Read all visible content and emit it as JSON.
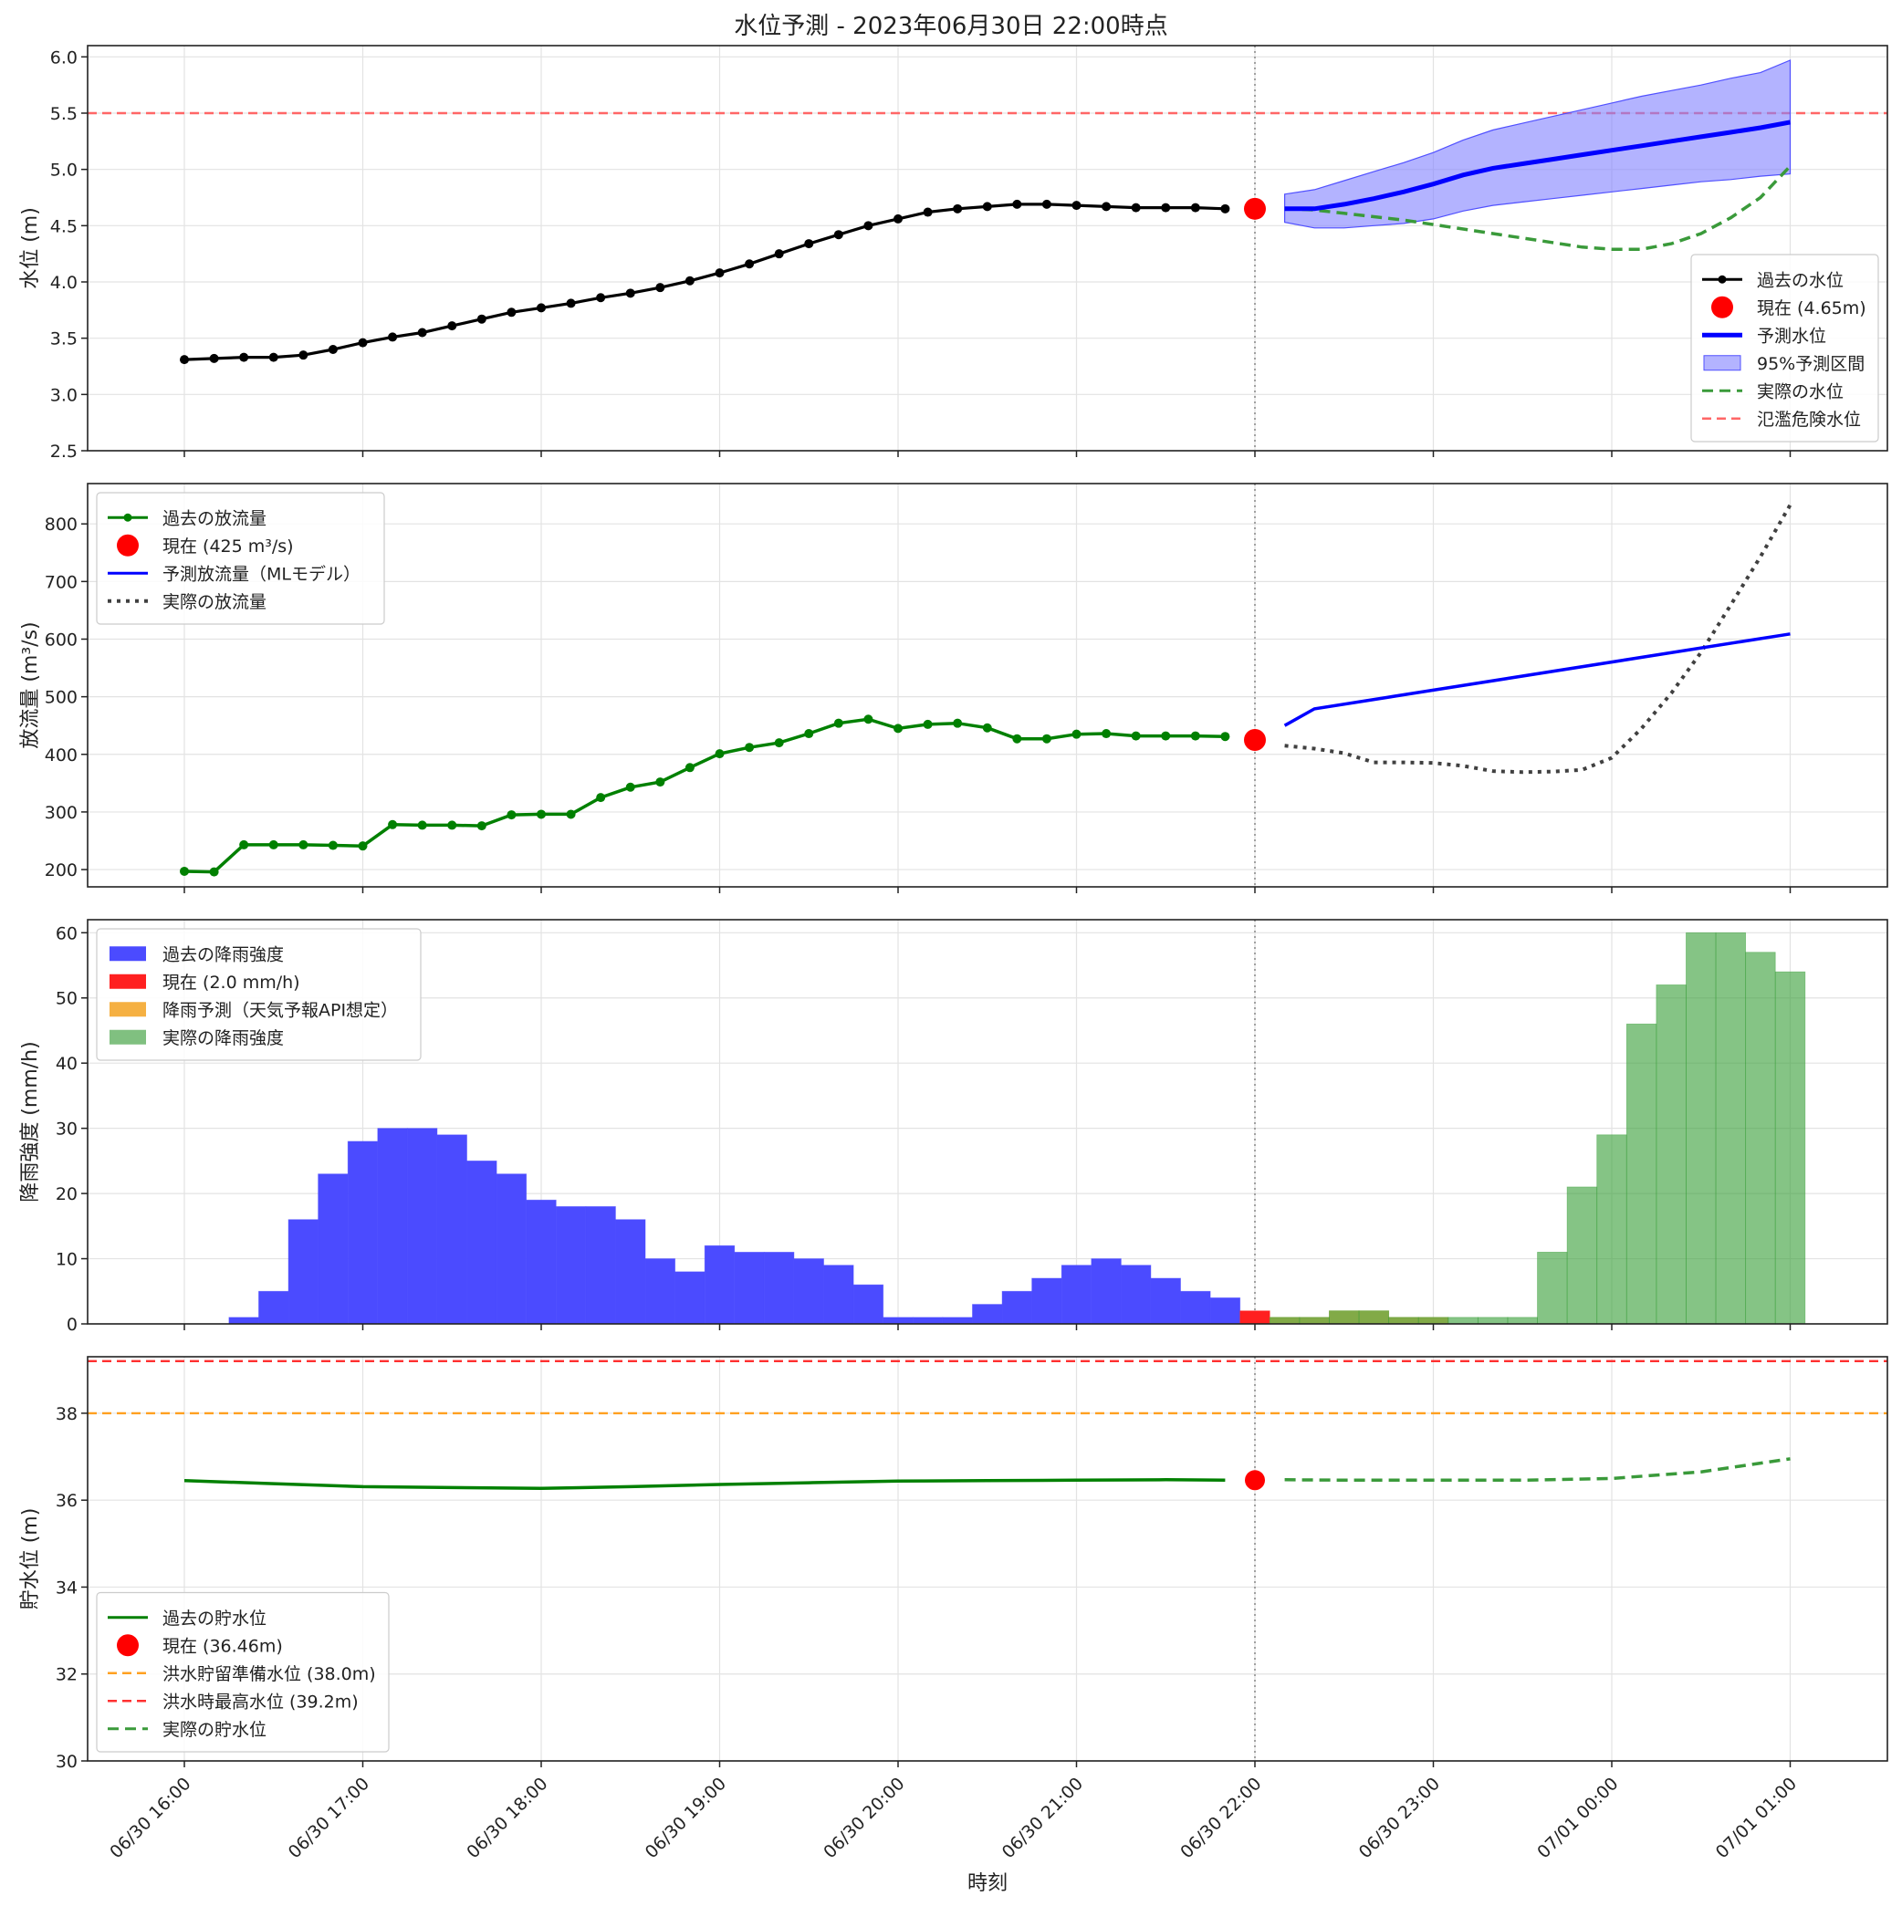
{
  "figure": {
    "title": "水位予測 - 2023年06月30日 22:00時点",
    "xlabel": "時刻",
    "x_tick_labels": [
      "06/30 16:00",
      "06/30 17:00",
      "06/30 18:00",
      "06/30 19:00",
      "06/30 20:00",
      "06/30 21:00",
      "06/30 22:00",
      "06/30 23:00",
      "07/01 00:00",
      "07/01 01:00"
    ],
    "current_time": "06/30 22:00"
  },
  "colors": {
    "past_level": "#000000",
    "current": "#ff0000",
    "forecast": "#0000ff",
    "interval": "#8080ff",
    "actual": "#3a9a3a",
    "flood_line": "#ff6666",
    "discharge_past": "#008000",
    "discharge_actual": "#404040",
    "rain_past": "#4b4bff",
    "rain_current": "#ff2020",
    "rain_forecast": "#f5b042",
    "rain_actual": "#80c080",
    "storage_past": "#008000",
    "prep_line": "#ffa020",
    "max_line": "#ff3030"
  },
  "chart_data": [
    {
      "type": "line",
      "ylabel": "水位 (m)",
      "ylim": [
        2.5,
        6.1
      ],
      "yticks": [
        "2.5",
        "3.0",
        "3.5",
        "4.0",
        "4.5",
        "5.0",
        "5.5",
        "6.0"
      ],
      "grid": true,
      "legend_position": "lower-right",
      "hline": {
        "name": "氾濫危険水位",
        "value": 5.5
      },
      "series": [
        {
          "name": "過去の水位",
          "x_hours": [
            0,
            0.1667,
            0.3333,
            0.5,
            0.6667,
            0.8333,
            1,
            1.1667,
            1.3333,
            1.5,
            1.6667,
            1.8333,
            2,
            2.1667,
            2.3333,
            2.5,
            2.6667,
            2.8333,
            3,
            3.1667,
            3.3333,
            3.5,
            3.6667,
            3.8333,
            4,
            4.1667,
            4.3333,
            4.5,
            4.6667,
            4.8333,
            5,
            5.1667,
            5.3333,
            5.5,
            5.6667,
            5.8333
          ],
          "values": [
            3.31,
            3.32,
            3.33,
            3.33,
            3.35,
            3.4,
            3.46,
            3.51,
            3.55,
            3.61,
            3.67,
            3.73,
            3.77,
            3.81,
            3.86,
            3.9,
            3.95,
            4.01,
            4.08,
            4.16,
            4.25,
            4.34,
            4.42,
            4.5,
            4.56,
            4.62,
            4.65,
            4.67,
            4.69,
            4.69,
            4.68,
            4.67,
            4.66,
            4.66,
            4.66,
            4.65
          ]
        },
        {
          "name": "現在 (4.65m)",
          "x_hours": [
            6
          ],
          "values": [
            4.65
          ]
        },
        {
          "name": "予測水位",
          "x_hours": [
            6.1667,
            6.3333,
            6.5,
            6.6667,
            6.8333,
            7,
            7.1667,
            7.3333,
            7.5,
            7.6667,
            7.8333,
            8,
            8.1667,
            8.3333,
            8.5,
            8.6667,
            8.8333,
            9
          ],
          "values": [
            4.65,
            4.65,
            4.69,
            4.74,
            4.8,
            4.87,
            4.95,
            5.01,
            5.05,
            5.09,
            5.13,
            5.17,
            5.21,
            5.25,
            5.29,
            5.33,
            5.37,
            5.42
          ]
        },
        {
          "name": "95%予測区間",
          "x_hours": [
            6.1667,
            6.3333,
            6.5,
            6.6667,
            6.8333,
            7,
            7.1667,
            7.3333,
            7.5,
            7.6667,
            7.8333,
            8,
            8.1667,
            8.3333,
            8.5,
            8.6667,
            8.8333,
            9
          ],
          "upper": [
            4.78,
            4.82,
            4.9,
            4.98,
            5.06,
            5.15,
            5.26,
            5.35,
            5.41,
            5.47,
            5.53,
            5.59,
            5.65,
            5.7,
            5.75,
            5.81,
            5.86,
            5.97
          ],
          "lower": [
            4.53,
            4.48,
            4.48,
            4.5,
            4.52,
            4.56,
            4.63,
            4.68,
            4.71,
            4.74,
            4.77,
            4.8,
            4.83,
            4.86,
            4.89,
            4.91,
            4.94,
            4.96
          ]
        },
        {
          "name": "実際の水位",
          "x_hours": [
            6.1667,
            6.3333,
            6.5,
            6.6667,
            6.8333,
            7,
            7.1667,
            7.3333,
            7.5,
            7.6667,
            7.8333,
            8,
            8.1667,
            8.3333,
            8.5,
            8.6667,
            8.8333,
            9
          ],
          "values": [
            4.65,
            4.64,
            4.61,
            4.58,
            4.55,
            4.51,
            4.47,
            4.43,
            4.39,
            4.35,
            4.31,
            4.29,
            4.29,
            4.34,
            4.43,
            4.57,
            4.75,
            5.03
          ]
        },
        {
          "name": "氾濫危険水位",
          "values": [
            5.5
          ]
        }
      ]
    },
    {
      "type": "line",
      "ylabel": "放流量 (m³/s)",
      "ylim": [
        170,
        870
      ],
      "yticks": [
        "200",
        "300",
        "400",
        "500",
        "600",
        "700",
        "800"
      ],
      "grid": true,
      "legend_position": "top-left",
      "series": [
        {
          "name": "過去の放流量",
          "x_hours": [
            0,
            0.1667,
            0.3333,
            0.5,
            0.6667,
            0.8333,
            1,
            1.1667,
            1.3333,
            1.5,
            1.6667,
            1.8333,
            2,
            2.1667,
            2.3333,
            2.5,
            2.6667,
            2.8333,
            3,
            3.1667,
            3.3333,
            3.5,
            3.6667,
            3.8333,
            4,
            4.1667,
            4.3333,
            4.5,
            4.6667,
            4.8333,
            5,
            5.1667,
            5.3333,
            5.5,
            5.6667,
            5.8333
          ],
          "values": [
            197,
            196,
            243,
            243,
            243,
            242,
            241,
            278,
            277,
            277,
            276,
            295,
            296,
            296,
            325,
            343,
            352,
            377,
            401,
            412,
            420,
            436,
            454,
            461,
            445,
            452,
            454,
            446,
            427,
            427,
            435,
            436,
            432,
            432,
            432,
            431
          ]
        },
        {
          "name": "現在 (425 m³/s)",
          "x_hours": [
            6
          ],
          "values": [
            425
          ]
        },
        {
          "name": "予測放流量（MLモデル）",
          "x_hours": [
            6.1667,
            6.3333,
            9
          ],
          "values": [
            450,
            479,
            609
          ]
        },
        {
          "name": "実際の放流量",
          "x_hours": [
            6.1667,
            6.3333,
            6.5,
            6.6667,
            6.8333,
            7,
            7.1667,
            7.3333,
            7.5,
            7.6667,
            7.8333,
            8,
            8.1667,
            8.3333,
            8.5,
            8.6667,
            8.8333,
            9
          ],
          "values": [
            415,
            410,
            402,
            386,
            386,
            385,
            380,
            371,
            369,
            370,
            373,
            394,
            445,
            506,
            577,
            659,
            743,
            833
          ]
        }
      ]
    },
    {
      "type": "bar",
      "ylabel": "降雨強度 (mm/h)",
      "ylim": [
        0,
        62
      ],
      "yticks": [
        "0",
        "10",
        "20",
        "30",
        "40",
        "50",
        "60"
      ],
      "grid": true,
      "legend_position": "top-left",
      "series": [
        {
          "name": "過去の降雨強度",
          "x_hours": [
            0,
            0.1667,
            0.3333,
            0.5,
            0.6667,
            0.8333,
            1,
            1.1667,
            1.3333,
            1.5,
            1.6667,
            1.8333,
            2,
            2.1667,
            2.3333,
            2.5,
            2.6667,
            2.8333,
            3,
            3.1667,
            3.3333,
            3.5,
            3.6667,
            3.8333,
            4,
            4.1667,
            4.3333,
            4.5,
            4.6667,
            4.8333,
            5,
            5.1667,
            5.3333,
            5.5,
            5.6667,
            5.8333
          ],
          "values": [
            0,
            0,
            1,
            5,
            16,
            23,
            28,
            30,
            30,
            29,
            25,
            23,
            19,
            18,
            18,
            16,
            10,
            8,
            12,
            11,
            11,
            10,
            9,
            6,
            1,
            1,
            1,
            3,
            5,
            7,
            9,
            10,
            9,
            7,
            5,
            4
          ]
        },
        {
          "name": "現在 (2.0 mm/h)",
          "x_hours": [
            6
          ],
          "values": [
            2
          ]
        },
        {
          "name": "降雨予測（天気予報API想定）",
          "x_hours": [
            6.1667,
            6.3333,
            6.5,
            6.6667,
            6.8333,
            7
          ],
          "values": [
            1,
            1,
            2,
            2,
            1,
            1
          ]
        },
        {
          "name": "実際の降雨強度",
          "x_hours": [
            6.1667,
            6.3333,
            6.5,
            6.6667,
            6.8333,
            7,
            7.1667,
            7.3333,
            7.5,
            7.6667,
            7.8333,
            8,
            8.1667,
            8.3333,
            8.5,
            8.6667,
            8.8333,
            9
          ],
          "values": [
            1,
            1,
            2,
            2,
            1,
            1,
            1,
            1,
            1,
            11,
            21,
            29,
            46,
            52,
            60,
            60,
            57,
            54
          ]
        }
      ]
    },
    {
      "type": "line",
      "ylabel": "貯水位 (m)",
      "xlabel": "時刻",
      "ylim": [
        30,
        39.3
      ],
      "yticks": [
        "30",
        "32",
        "34",
        "36",
        "38"
      ],
      "grid": true,
      "legend_position": "bottom-left",
      "series": [
        {
          "name": "過去の貯水位",
          "x_hours": [
            0,
            0.5,
            1,
            1.5,
            2,
            2.5,
            3,
            3.5,
            4,
            4.5,
            5,
            5.5,
            5.8333
          ],
          "values": [
            36.45,
            36.38,
            36.31,
            36.29,
            36.27,
            36.31,
            36.36,
            36.4,
            36.44,
            36.45,
            36.46,
            36.47,
            36.46
          ]
        },
        {
          "name": "現在 (36.46m)",
          "x_hours": [
            6
          ],
          "values": [
            36.46
          ]
        },
        {
          "name": "洪水貯留準備水位 (38.0m)",
          "values": [
            38.0
          ]
        },
        {
          "name": "洪水時最高水位 (39.2m)",
          "values": [
            39.2
          ]
        },
        {
          "name": "実際の貯水位",
          "x_hours": [
            6.1667,
            6.5,
            7,
            7.5,
            8,
            8.5,
            9
          ],
          "values": [
            36.47,
            36.46,
            36.46,
            36.46,
            36.5,
            36.65,
            36.95
          ]
        }
      ]
    }
  ]
}
